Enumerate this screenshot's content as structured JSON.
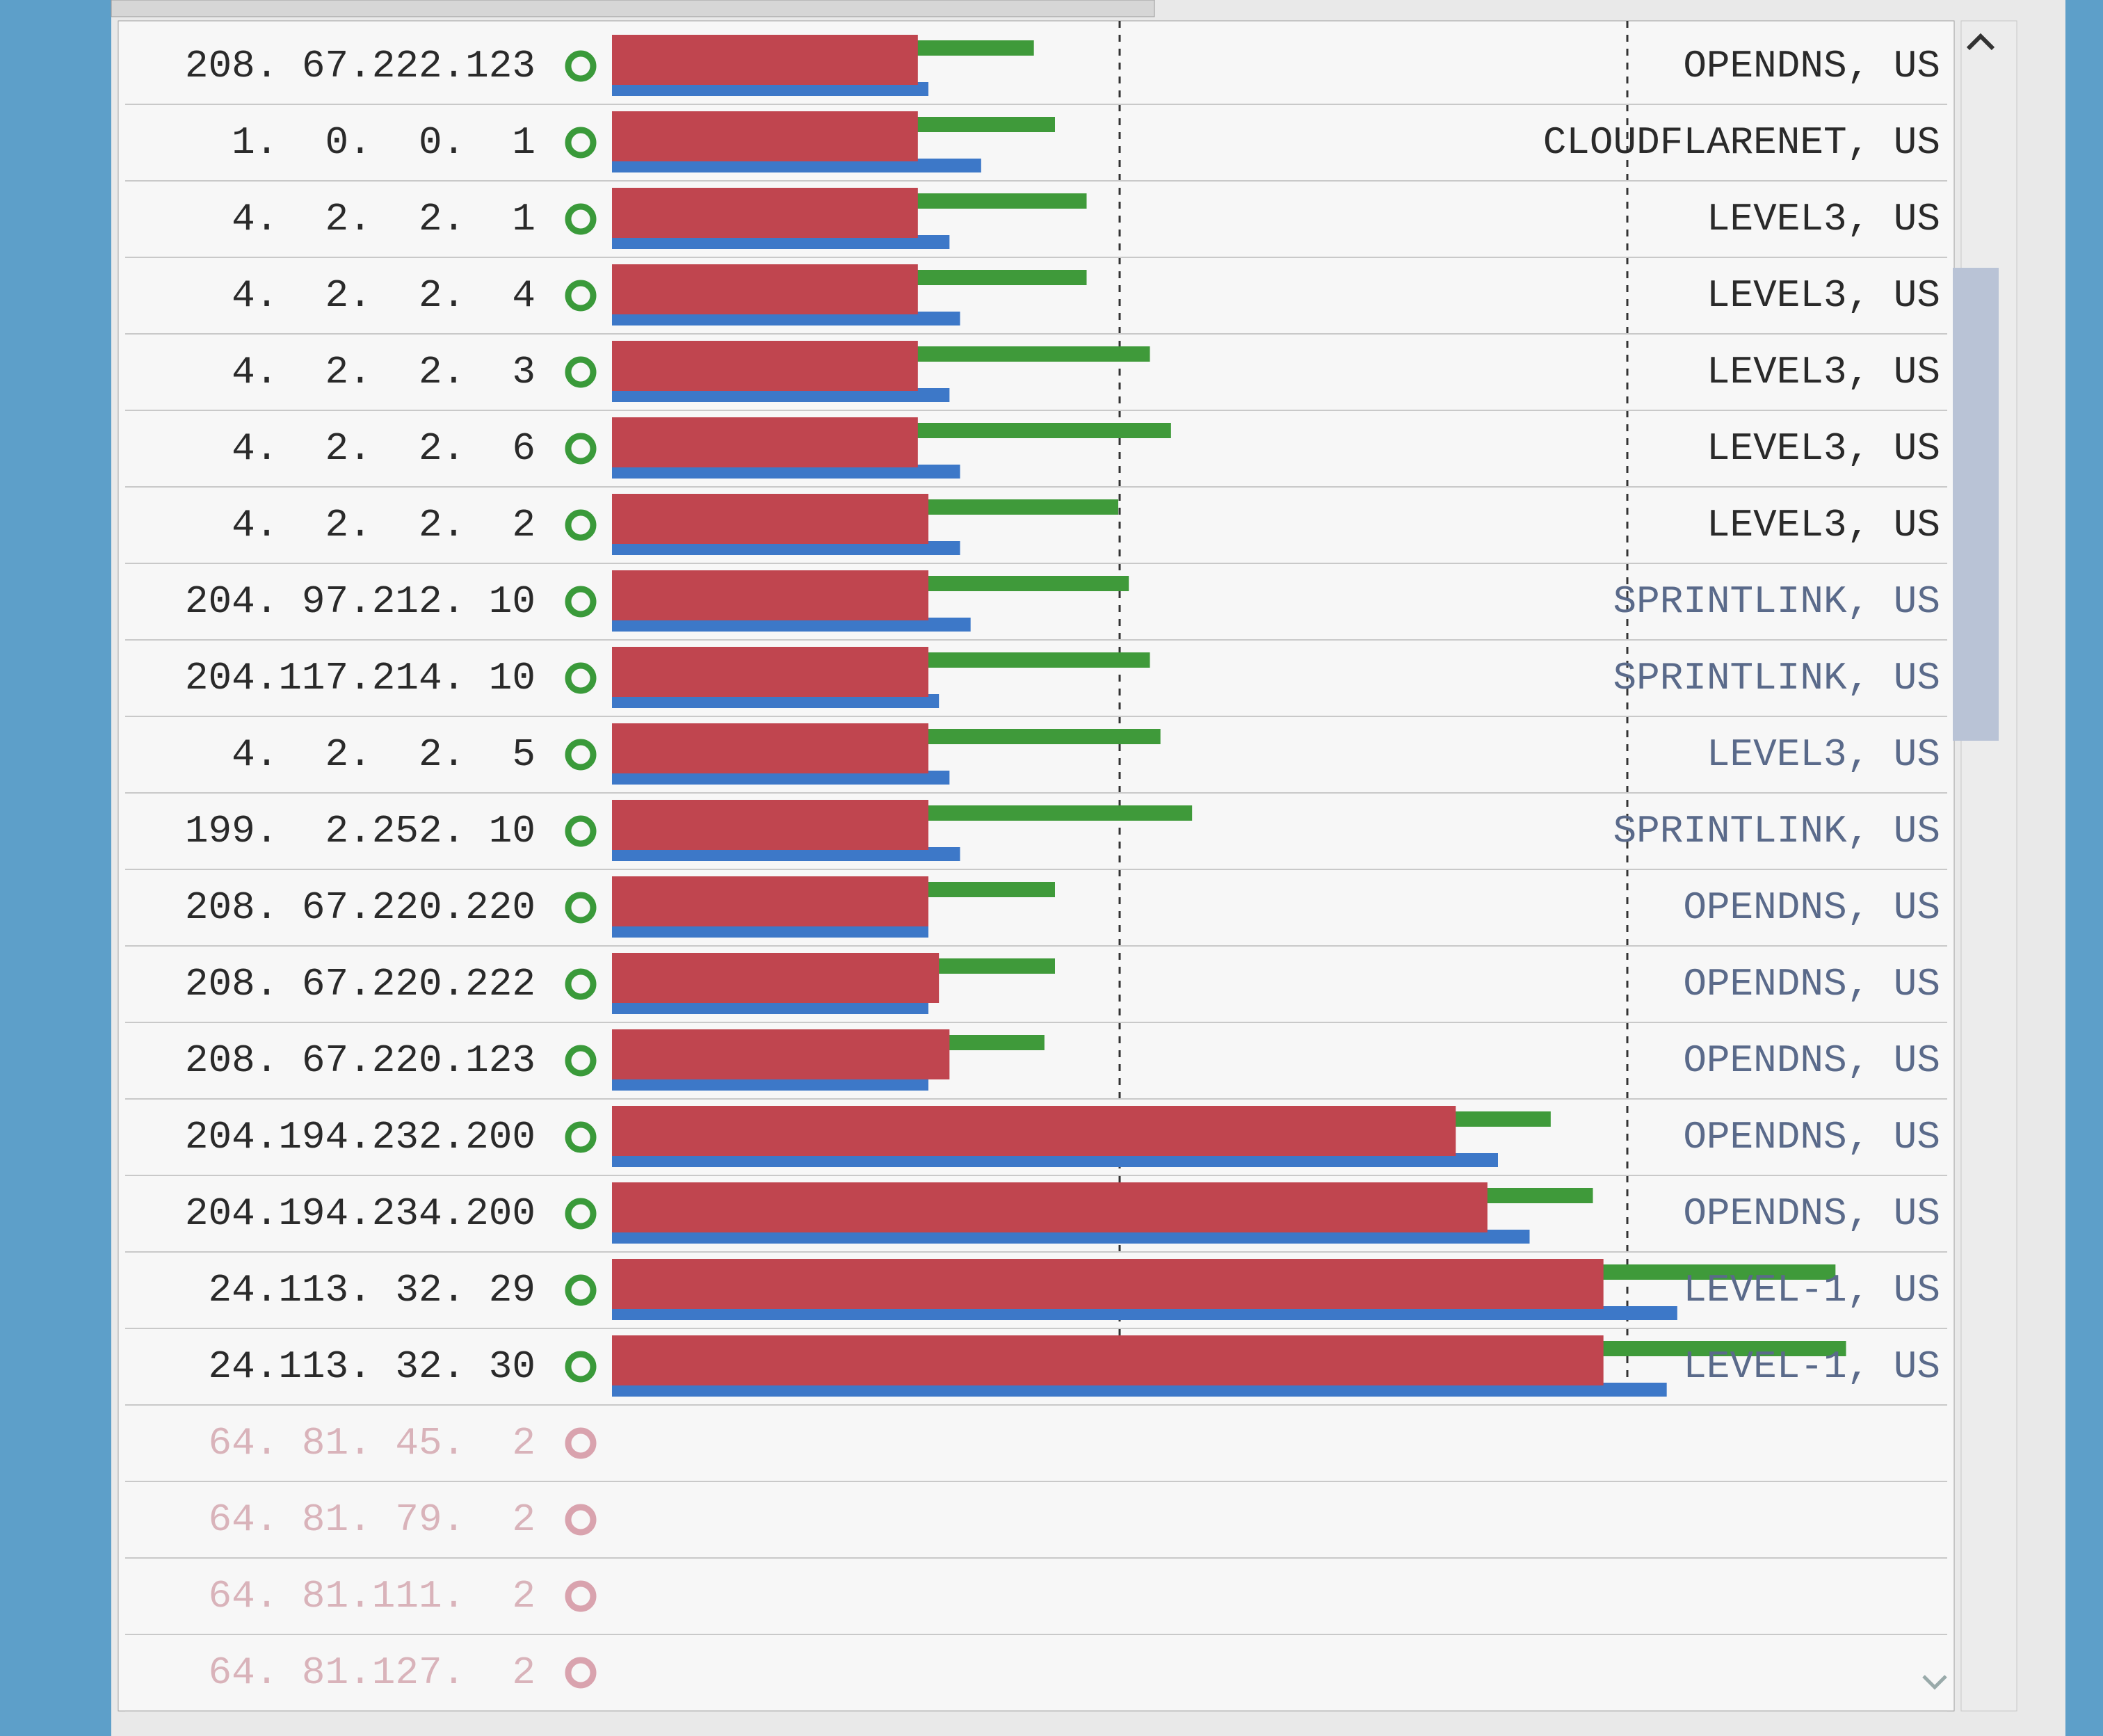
{
  "xlim": [
    0,
    12
  ],
  "rows": [
    {
      "ip": "208. 67.222.123",
      "status_color": "#3a9a3a",
      "cached": 2.9,
      "uncached": 4.0,
      "dotcom": 3.0,
      "owner": "OPENDNS, US"
    },
    {
      "ip": "  1.  0.  0.  1",
      "status_color": "#3a9a3a",
      "cached": 2.9,
      "uncached": 4.2,
      "dotcom": 3.5,
      "owner": "CLOUDFLARENET, US"
    },
    {
      "ip": "  4.  2.  2.  1",
      "status_color": "#3a9a3a",
      "cached": 2.9,
      "uncached": 4.5,
      "dotcom": 3.2,
      "owner": "LEVEL3, US"
    },
    {
      "ip": "  4.  2.  2.  4",
      "status_color": "#3a9a3a",
      "cached": 2.9,
      "uncached": 4.5,
      "dotcom": 3.3,
      "owner": "LEVEL3, US"
    },
    {
      "ip": "  4.  2.  2.  3",
      "status_color": "#3a9a3a",
      "cached": 2.9,
      "uncached": 5.1,
      "dotcom": 3.2,
      "owner": "LEVEL3, US"
    },
    {
      "ip": "  4.  2.  2.  6",
      "status_color": "#3a9a3a",
      "cached": 2.9,
      "uncached": 5.3,
      "dotcom": 3.3,
      "owner": "LEVEL3, US"
    },
    {
      "ip": "  4.  2.  2.  2",
      "status_color": "#3a9a3a",
      "cached": 3.0,
      "uncached": 4.8,
      "dotcom": 3.3,
      "owner": "LEVEL3, US"
    },
    {
      "ip": "204. 97.212. 10",
      "status_color": "#3a9a3a",
      "cached": 3.0,
      "uncached": 4.9,
      "dotcom": 3.4,
      "owner": "SPRINTLINK, US"
    },
    {
      "ip": "204.117.214. 10",
      "status_color": "#3a9a3a",
      "cached": 3.0,
      "uncached": 5.1,
      "dotcom": 3.1,
      "owner": "SPRINTLINK, US"
    },
    {
      "ip": "  4.  2.  2.  5",
      "status_color": "#3a9a3a",
      "cached": 3.0,
      "uncached": 5.2,
      "dotcom": 3.2,
      "owner": "LEVEL3, US"
    },
    {
      "ip": "199.  2.252. 10",
      "status_color": "#3a9a3a",
      "cached": 3.0,
      "uncached": 5.5,
      "dotcom": 3.3,
      "owner": "SPRINTLINK, US"
    },
    {
      "ip": "208. 67.220.220",
      "status_color": "#3a9a3a",
      "cached": 3.0,
      "uncached": 4.2,
      "dotcom": 3.0,
      "owner": "OPENDNS, US"
    },
    {
      "ip": "208. 67.220.222",
      "status_color": "#3a9a3a",
      "cached": 3.1,
      "uncached": 4.2,
      "dotcom": 3.0,
      "owner": "OPENDNS, US"
    },
    {
      "ip": "208. 67.220.123",
      "status_color": "#3a9a3a",
      "cached": 3.2,
      "uncached": 4.1,
      "dotcom": 3.0,
      "owner": "OPENDNS, US"
    },
    {
      "ip": "204.194.232.200",
      "status_color": "#3a9a3a",
      "cached": 8.0,
      "uncached": 8.9,
      "dotcom": 8.4,
      "owner": "OPENDNS, US"
    },
    {
      "ip": "204.194.234.200",
      "status_color": "#3a9a3a",
      "cached": 8.3,
      "uncached": 9.3,
      "dotcom": 8.7,
      "owner": "OPENDNS, US"
    },
    {
      "ip": " 24.113. 32. 29",
      "status_color": "#3a9a3a",
      "cached": 9.4,
      "uncached": 11.6,
      "dotcom": 10.1,
      "owner": "LEVEL-1, US"
    },
    {
      "ip": " 24.113. 32. 30",
      "status_color": "#3a9a3a",
      "cached": 9.4,
      "uncached": 11.7,
      "dotcom": 10.0,
      "owner": "LEVEL-1, US"
    },
    {
      "ip": " 64. 81. 45.  2",
      "status_color": "#d9a3ae"
    },
    {
      "ip": " 64. 81. 79.  2",
      "status_color": "#d9a3ae"
    },
    {
      "ip": " 64. 81.111.  2",
      "status_color": "#d9a3ae"
    },
    {
      "ip": " 64. 81.127.  2",
      "status_color": "#d9a3ae"
    }
  ]
}
